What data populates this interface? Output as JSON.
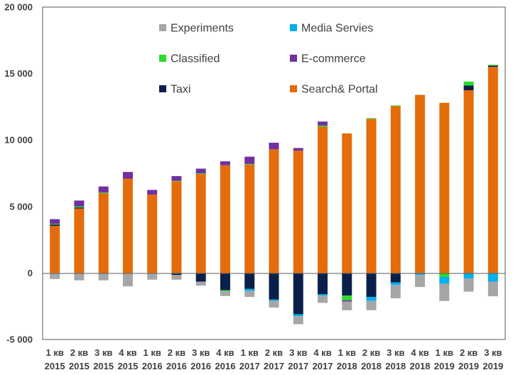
{
  "chart_data": {
    "type": "bar",
    "stacked": true,
    "categories": [
      [
        "1 кв",
        "2015"
      ],
      [
        "2 кв",
        "2015"
      ],
      [
        "3 кв",
        "2015"
      ],
      [
        "4 кв",
        "2015"
      ],
      [
        "1 кв",
        "2016"
      ],
      [
        "2 кв",
        "2016"
      ],
      [
        "3 кв",
        "2016"
      ],
      [
        "4 кв",
        "2016"
      ],
      [
        "1 кв",
        "2017"
      ],
      [
        "2 кв",
        "2017"
      ],
      [
        "3 кв",
        "2017"
      ],
      [
        "4 кв",
        "2017"
      ],
      [
        "1 кв",
        "2018"
      ],
      [
        "2 кв",
        "2018"
      ],
      [
        "3 кв",
        "2018"
      ],
      [
        "4 кв",
        "2018"
      ],
      [
        "1 кв",
        "2019"
      ],
      [
        "2 кв",
        "2019"
      ],
      [
        "3 кв",
        "2019"
      ]
    ],
    "ylim": [
      -5000,
      20000
    ],
    "yticks": [
      -5000,
      0,
      5000,
      10000,
      15000,
      20000
    ],
    "ytick_labels": [
      "-5 000",
      "0",
      "5 000",
      "10 000",
      "15 000",
      "20 000"
    ],
    "grid": false,
    "legend": "top, inside plot, two columns",
    "series": [
      {
        "name": "Search& Portal",
        "color": "#E46C0A",
        "values": [
          3550,
          4850,
          6000,
          7100,
          5900,
          6900,
          7450,
          8100,
          8150,
          9300,
          9200,
          11000,
          10500,
          11600,
          12550,
          13400,
          12800,
          13750,
          15500
        ]
      },
      {
        "name": "Taxi",
        "color": "#0B1F4B",
        "values": [
          100,
          80,
          0,
          0,
          0,
          -150,
          -650,
          -1300,
          -1200,
          -2000,
          -3100,
          -1600,
          -1700,
          -1800,
          -700,
          0,
          0,
          350,
          100
        ]
      },
      {
        "name": "Classified",
        "color": "#2BDD2B",
        "values": [
          50,
          70,
          60,
          0,
          0,
          40,
          50,
          -80,
          50,
          0,
          0,
          90,
          -350,
          50,
          50,
          0,
          -300,
          300,
          60
        ]
      },
      {
        "name": "E-commerce",
        "color": "#7030A0",
        "values": [
          350,
          450,
          450,
          500,
          350,
          350,
          350,
          300,
          550,
          500,
          200,
          300,
          -100,
          0,
          0,
          0,
          0,
          0,
          0
        ]
      },
      {
        "name": "Media Servies",
        "color": "#00B0F0",
        "values": [
          0,
          0,
          0,
          0,
          0,
          0,
          0,
          0,
          -150,
          -100,
          -150,
          -100,
          0,
          -300,
          -200,
          -150,
          -500,
          -400,
          -650
        ]
      },
      {
        "name": "Experiments",
        "color": "#A6A6A6",
        "values": [
          -450,
          -550,
          -550,
          -1000,
          -500,
          -350,
          -300,
          -350,
          -450,
          -500,
          -600,
          -550,
          -650,
          -700,
          -1000,
          -900,
          -1300,
          -1000,
          -1100
        ]
      }
    ],
    "legend_order": [
      "Experiments",
      "Media Servies",
      "Classified",
      "E-commerce",
      "Taxi",
      "Search& Portal"
    ]
  }
}
